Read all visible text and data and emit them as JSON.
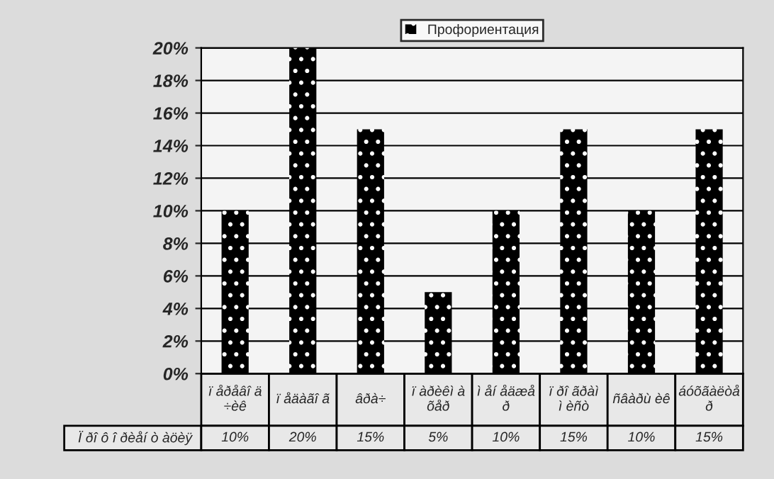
{
  "chart_data": {
    "type": "bar",
    "categories": [
      "ï åðåâî ä\n÷èê",
      "ï åäàãî ã",
      "âðà÷",
      "ï àðèêì à\nõåð",
      "ì åí åäæå\nð",
      "ï ðî ãðàì\nì èñò",
      "ñâàðù èê",
      "áóõãàëòå\nð"
    ],
    "series": [
      {
        "name": "Профориентация",
        "color": "#000000",
        "values": [
          10,
          20,
          15,
          5,
          10,
          15,
          10,
          15
        ],
        "value_labels": [
          "10%",
          "20%",
          "15%",
          "5%",
          "10%",
          "15%",
          "10%",
          "15%"
        ]
      }
    ],
    "annotations": [
      "Ï ðî ô î ðèåí ò àöèÿ"
    ],
    "ylim": [
      0,
      20
    ],
    "yticks": [
      {
        "value": 0,
        "label": "0%"
      },
      {
        "value": 2,
        "label": "2%"
      },
      {
        "value": 4,
        "label": "4%"
      },
      {
        "value": 6,
        "label": "6%"
      },
      {
        "value": 8,
        "label": "8%"
      },
      {
        "value": 10,
        "label": "10%"
      },
      {
        "value": 12,
        "label": "12%"
      },
      {
        "value": 14,
        "label": "14%"
      },
      {
        "value": 16,
        "label": "16%"
      },
      {
        "value": 18,
        "label": "18%"
      },
      {
        "value": 20,
        "label": "20%"
      }
    ],
    "grid": "y",
    "legend": "top"
  }
}
